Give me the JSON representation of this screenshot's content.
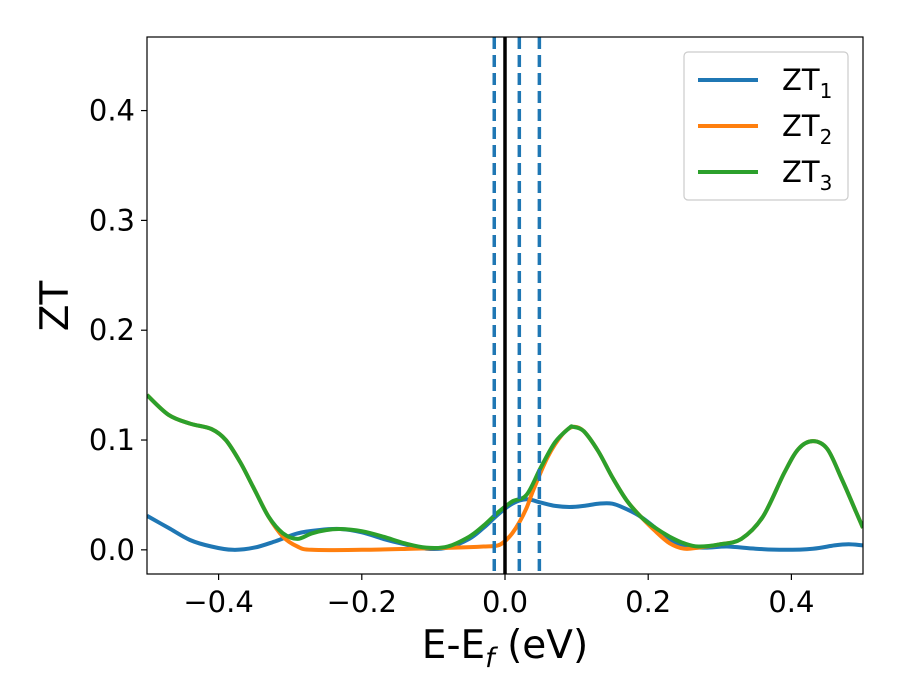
{
  "chart_data": {
    "type": "line",
    "title": "",
    "xlabel": {
      "main": "E-E",
      "sub": "f",
      "tail": " (eV)"
    },
    "ylabel": "ZT",
    "xlim": [
      -0.5,
      0.5
    ],
    "ylim": [
      -0.022,
      0.467
    ],
    "xticks": [
      {
        "value": -0.4,
        "label": "−0.4"
      },
      {
        "value": -0.2,
        "label": "−0.2"
      },
      {
        "value": 0.0,
        "label": "0.0"
      },
      {
        "value": 0.2,
        "label": "0.2"
      },
      {
        "value": 0.4,
        "label": "0.4"
      }
    ],
    "yticks": [
      {
        "value": 0.0,
        "label": "0.0"
      },
      {
        "value": 0.1,
        "label": "0.1"
      },
      {
        "value": 0.2,
        "label": "0.2"
      },
      {
        "value": 0.3,
        "label": "0.3"
      },
      {
        "value": 0.4,
        "label": "0.4"
      }
    ],
    "grid": false,
    "legend_position": "top-right",
    "vlines": [
      {
        "x": 0.0,
        "style": "solid",
        "color": "#000000"
      },
      {
        "x": -0.015,
        "style": "dashed",
        "color": "#1f77b4"
      },
      {
        "x": 0.02,
        "style": "dashed",
        "color": "#1f77b4"
      },
      {
        "x": 0.048,
        "style": "dashed",
        "color": "#1f77b4"
      }
    ],
    "series": [
      {
        "name": "ZT",
        "sub": "1",
        "color": "#1f77b4",
        "points": [
          [
            -0.5,
            0.031
          ],
          [
            -0.47,
            0.02
          ],
          [
            -0.44,
            0.009
          ],
          [
            -0.41,
            0.003
          ],
          [
            -0.38,
            0.0
          ],
          [
            -0.35,
            0.002
          ],
          [
            -0.32,
            0.008
          ],
          [
            -0.29,
            0.015
          ],
          [
            -0.26,
            0.018
          ],
          [
            -0.23,
            0.019
          ],
          [
            -0.2,
            0.016
          ],
          [
            -0.17,
            0.01
          ],
          [
            -0.14,
            0.005
          ],
          [
            -0.11,
            0.001
          ],
          [
            -0.08,
            0.002
          ],
          [
            -0.05,
            0.01
          ],
          [
            -0.03,
            0.02
          ],
          [
            -0.01,
            0.032
          ],
          [
            0.01,
            0.042
          ],
          [
            0.03,
            0.046
          ],
          [
            0.05,
            0.043
          ],
          [
            0.07,
            0.04
          ],
          [
            0.09,
            0.039
          ],
          [
            0.11,
            0.04
          ],
          [
            0.13,
            0.042
          ],
          [
            0.15,
            0.042
          ],
          [
            0.17,
            0.037
          ],
          [
            0.19,
            0.03
          ],
          [
            0.21,
            0.02
          ],
          [
            0.23,
            0.01
          ],
          [
            0.25,
            0.003
          ],
          [
            0.28,
            0.002
          ],
          [
            0.31,
            0.003
          ],
          [
            0.35,
            0.001
          ],
          [
            0.39,
            0.0
          ],
          [
            0.43,
            0.001
          ],
          [
            0.46,
            0.004
          ],
          [
            0.48,
            0.005
          ],
          [
            0.5,
            0.004
          ]
        ]
      },
      {
        "name": "ZT",
        "sub": "2",
        "color": "#ff7f0e",
        "points": [
          [
            -0.5,
            0.141
          ],
          [
            -0.47,
            0.123
          ],
          [
            -0.44,
            0.115
          ],
          [
            -0.41,
            0.11
          ],
          [
            -0.39,
            0.1
          ],
          [
            -0.37,
            0.08
          ],
          [
            -0.35,
            0.055
          ],
          [
            -0.33,
            0.03
          ],
          [
            -0.31,
            0.012
          ],
          [
            -0.29,
            0.003
          ],
          [
            -0.27,
            0.0
          ],
          [
            -0.2,
            0.0
          ],
          [
            -0.13,
            0.001
          ],
          [
            -0.07,
            0.002
          ],
          [
            -0.03,
            0.003
          ],
          [
            -0.01,
            0.004
          ],
          [
            0.0,
            0.008
          ],
          [
            0.01,
            0.015
          ],
          [
            0.02,
            0.025
          ],
          [
            0.03,
            0.038
          ],
          [
            0.04,
            0.055
          ],
          [
            0.06,
            0.085
          ],
          [
            0.08,
            0.105
          ],
          [
            0.095,
            0.112
          ],
          [
            0.11,
            0.108
          ],
          [
            0.13,
            0.09
          ],
          [
            0.15,
            0.066
          ],
          [
            0.17,
            0.045
          ],
          [
            0.19,
            0.03
          ],
          [
            0.21,
            0.017
          ],
          [
            0.23,
            0.006
          ],
          [
            0.25,
            0.001
          ],
          [
            0.27,
            0.002
          ],
          [
            0.3,
            0.005
          ],
          [
            0.33,
            0.01
          ],
          [
            0.36,
            0.03
          ],
          [
            0.39,
            0.07
          ],
          [
            0.41,
            0.092
          ],
          [
            0.43,
            0.099
          ],
          [
            0.45,
            0.092
          ],
          [
            0.47,
            0.065
          ],
          [
            0.49,
            0.035
          ],
          [
            0.5,
            0.02
          ]
        ]
      },
      {
        "name": "ZT",
        "sub": "3",
        "color": "#2ca02c",
        "points": [
          [
            -0.5,
            0.141
          ],
          [
            -0.47,
            0.123
          ],
          [
            -0.44,
            0.115
          ],
          [
            -0.41,
            0.11
          ],
          [
            -0.39,
            0.1
          ],
          [
            -0.37,
            0.08
          ],
          [
            -0.35,
            0.055
          ],
          [
            -0.33,
            0.03
          ],
          [
            -0.31,
            0.015
          ],
          [
            -0.29,
            0.01
          ],
          [
            -0.27,
            0.015
          ],
          [
            -0.25,
            0.018
          ],
          [
            -0.23,
            0.019
          ],
          [
            -0.2,
            0.017
          ],
          [
            -0.17,
            0.012
          ],
          [
            -0.14,
            0.006
          ],
          [
            -0.11,
            0.002
          ],
          [
            -0.08,
            0.003
          ],
          [
            -0.05,
            0.012
          ],
          [
            -0.03,
            0.022
          ],
          [
            -0.01,
            0.034
          ],
          [
            0.01,
            0.044
          ],
          [
            0.03,
            0.05
          ],
          [
            0.05,
            0.075
          ],
          [
            0.07,
            0.098
          ],
          [
            0.09,
            0.111
          ],
          [
            0.095,
            0.112
          ],
          [
            0.11,
            0.108
          ],
          [
            0.13,
            0.09
          ],
          [
            0.15,
            0.066
          ],
          [
            0.17,
            0.045
          ],
          [
            0.19,
            0.03
          ],
          [
            0.21,
            0.02
          ],
          [
            0.23,
            0.012
          ],
          [
            0.25,
            0.006
          ],
          [
            0.27,
            0.003
          ],
          [
            0.3,
            0.005
          ],
          [
            0.33,
            0.01
          ],
          [
            0.36,
            0.03
          ],
          [
            0.39,
            0.07
          ],
          [
            0.41,
            0.092
          ],
          [
            0.43,
            0.099
          ],
          [
            0.45,
            0.092
          ],
          [
            0.47,
            0.065
          ],
          [
            0.49,
            0.035
          ],
          [
            0.5,
            0.02
          ]
        ]
      }
    ]
  }
}
